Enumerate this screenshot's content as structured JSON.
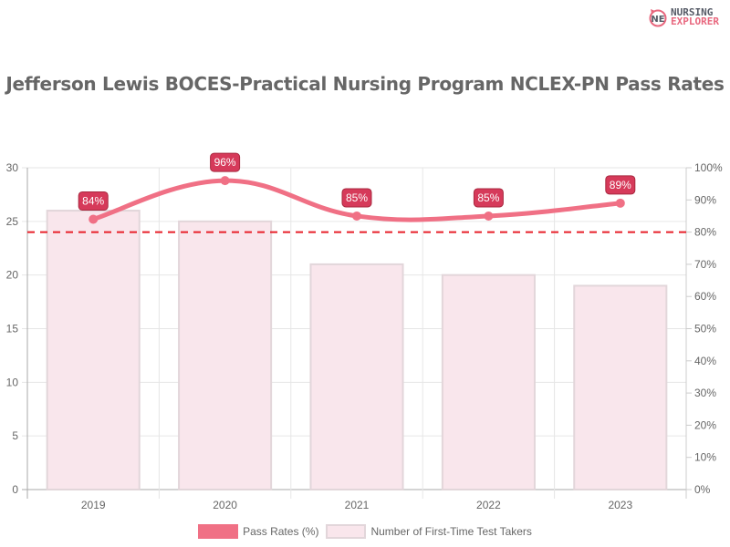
{
  "logo": {
    "line1": "NURSING",
    "line2": "EXPLORER"
  },
  "title": "Jefferson Lewis BOCES-Practical Nursing Program NCLEX-PN Pass Rates",
  "legend": {
    "pass_rates": "Pass Rates (%)",
    "test_takers": "Number of First-Time Test Takers"
  },
  "colors": {
    "line": "#f07085",
    "label_bg": "#d63a5a",
    "bar_fill": "#f9e6ec",
    "bar_border": "#e2d6da",
    "threshold": "#e8202a",
    "grid": "#e6e6e6"
  },
  "chart_data": {
    "type": "bar+line",
    "title": "Jefferson Lewis BOCES-Practical Nursing Program NCLEX-PN Pass Rates",
    "categories": [
      "2019",
      "2020",
      "2021",
      "2022",
      "2023"
    ],
    "series": [
      {
        "name": "Pass Rates (%)",
        "type": "line",
        "axis": "right",
        "values": [
          84,
          96,
          85,
          85,
          89
        ],
        "labels": [
          "84%",
          "96%",
          "85%",
          "85%",
          "89%"
        ]
      },
      {
        "name": "Number of First-Time Test Takers",
        "type": "bar",
        "axis": "left",
        "values": [
          26,
          25,
          21,
          20,
          19
        ]
      }
    ],
    "left_axis": {
      "range": [
        0,
        30
      ],
      "ticks": [
        "0",
        "5",
        "10",
        "15",
        "20",
        "25",
        "30"
      ]
    },
    "right_axis": {
      "range": [
        0,
        100
      ],
      "ticks": [
        "0%",
        "10%",
        "20%",
        "30%",
        "40%",
        "50%",
        "60%",
        "70%",
        "80%",
        "90%",
        "100%"
      ]
    },
    "threshold": {
      "value": 80,
      "axis": "right",
      "style": "dashed red"
    },
    "grid": true,
    "legend_position": "bottom"
  }
}
